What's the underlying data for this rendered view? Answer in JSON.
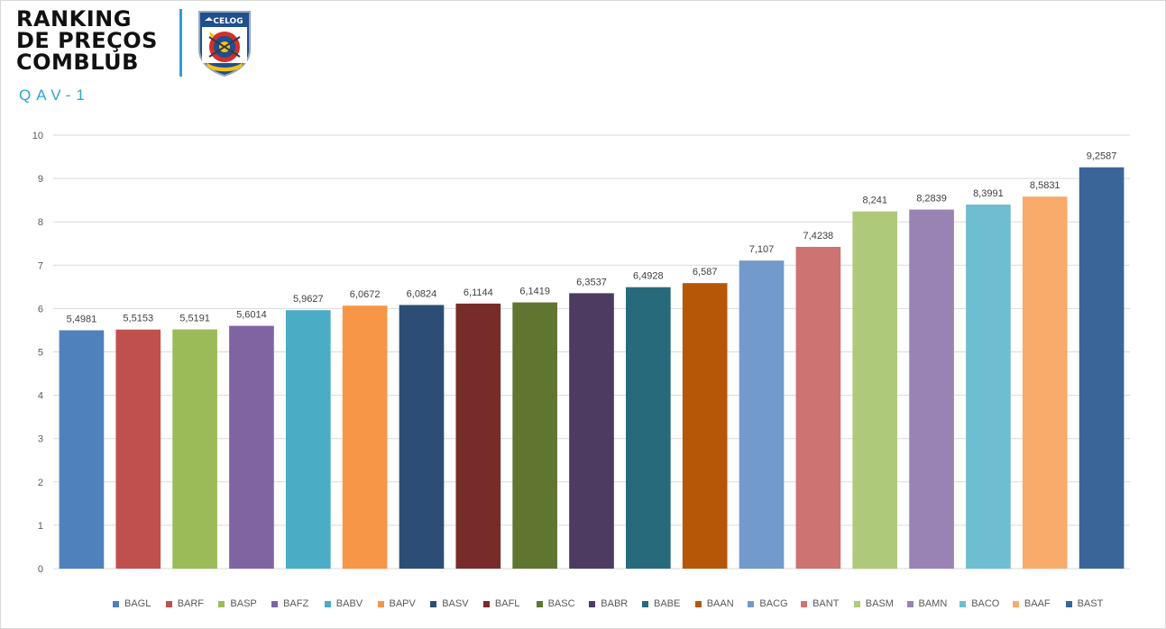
{
  "header": {
    "title_lines": [
      "RANKING",
      "DE PREÇOS",
      "COMBLUB"
    ],
    "subtitle": "QAV-1",
    "logo_text": "CELOG"
  },
  "colors": {
    "accent": "#2e9fd3",
    "subtitle": "#2aa3cf"
  },
  "chart_data": {
    "type": "bar",
    "title": "",
    "xlabel": "",
    "ylabel": "",
    "ylim": [
      0,
      10
    ],
    "yticks": [
      "0",
      "1",
      "2",
      "3",
      "4",
      "5",
      "6",
      "7",
      "8",
      "9",
      "10"
    ],
    "grid": true,
    "legend_position": "bottom",
    "series": [
      {
        "name": "BAGL",
        "value": 5.4981,
        "label": "5,4981",
        "color": "#4f81bd"
      },
      {
        "name": "BARF",
        "value": 5.5153,
        "label": "5,5153",
        "color": "#c0504d"
      },
      {
        "name": "BASP",
        "value": 5.5191,
        "label": "5,5191",
        "color": "#9bbb59"
      },
      {
        "name": "BAFZ",
        "value": 5.6014,
        "label": "5,6014",
        "color": "#8064a2"
      },
      {
        "name": "BABV",
        "value": 5.9627,
        "label": "5,9627",
        "color": "#4bacc6"
      },
      {
        "name": "BAPV",
        "value": 6.0672,
        "label": "6,0672",
        "color": "#f79646"
      },
      {
        "name": "BASV",
        "value": 6.0824,
        "label": "6,0824",
        "color": "#2c4d75"
      },
      {
        "name": "BAFL",
        "value": 6.1144,
        "label": "6,1144",
        "color": "#772c2a"
      },
      {
        "name": "BASC",
        "value": 6.1419,
        "label": "6,1419",
        "color": "#5f7530"
      },
      {
        "name": "BABR",
        "value": 6.3537,
        "label": "6,3537",
        "color": "#4d3b62"
      },
      {
        "name": "BABE",
        "value": 6.4928,
        "label": "6,4928",
        "color": "#276a7c"
      },
      {
        "name": "BAAN",
        "value": 6.587,
        "label": "6,587",
        "color": "#b65708"
      },
      {
        "name": "BACG",
        "value": 7.107,
        "label": "7,107",
        "color": "#729aca"
      },
      {
        "name": "BANT",
        "value": 7.4238,
        "label": "7,4238",
        "color": "#cd7371"
      },
      {
        "name": "BASM",
        "value": 8.241,
        "label": "8,241",
        "color": "#afc97a"
      },
      {
        "name": "BAMN",
        "value": 8.2839,
        "label": "8,2839",
        "color": "#9983b5"
      },
      {
        "name": "BACO",
        "value": 8.3991,
        "label": "8,3991",
        "color": "#6fbdd1"
      },
      {
        "name": "BAAF",
        "value": 8.5831,
        "label": "8,5831",
        "color": "#f9ab6b"
      },
      {
        "name": "BAST",
        "value": 9.2587,
        "label": "9,2587",
        "color": "#3a6599"
      }
    ]
  }
}
